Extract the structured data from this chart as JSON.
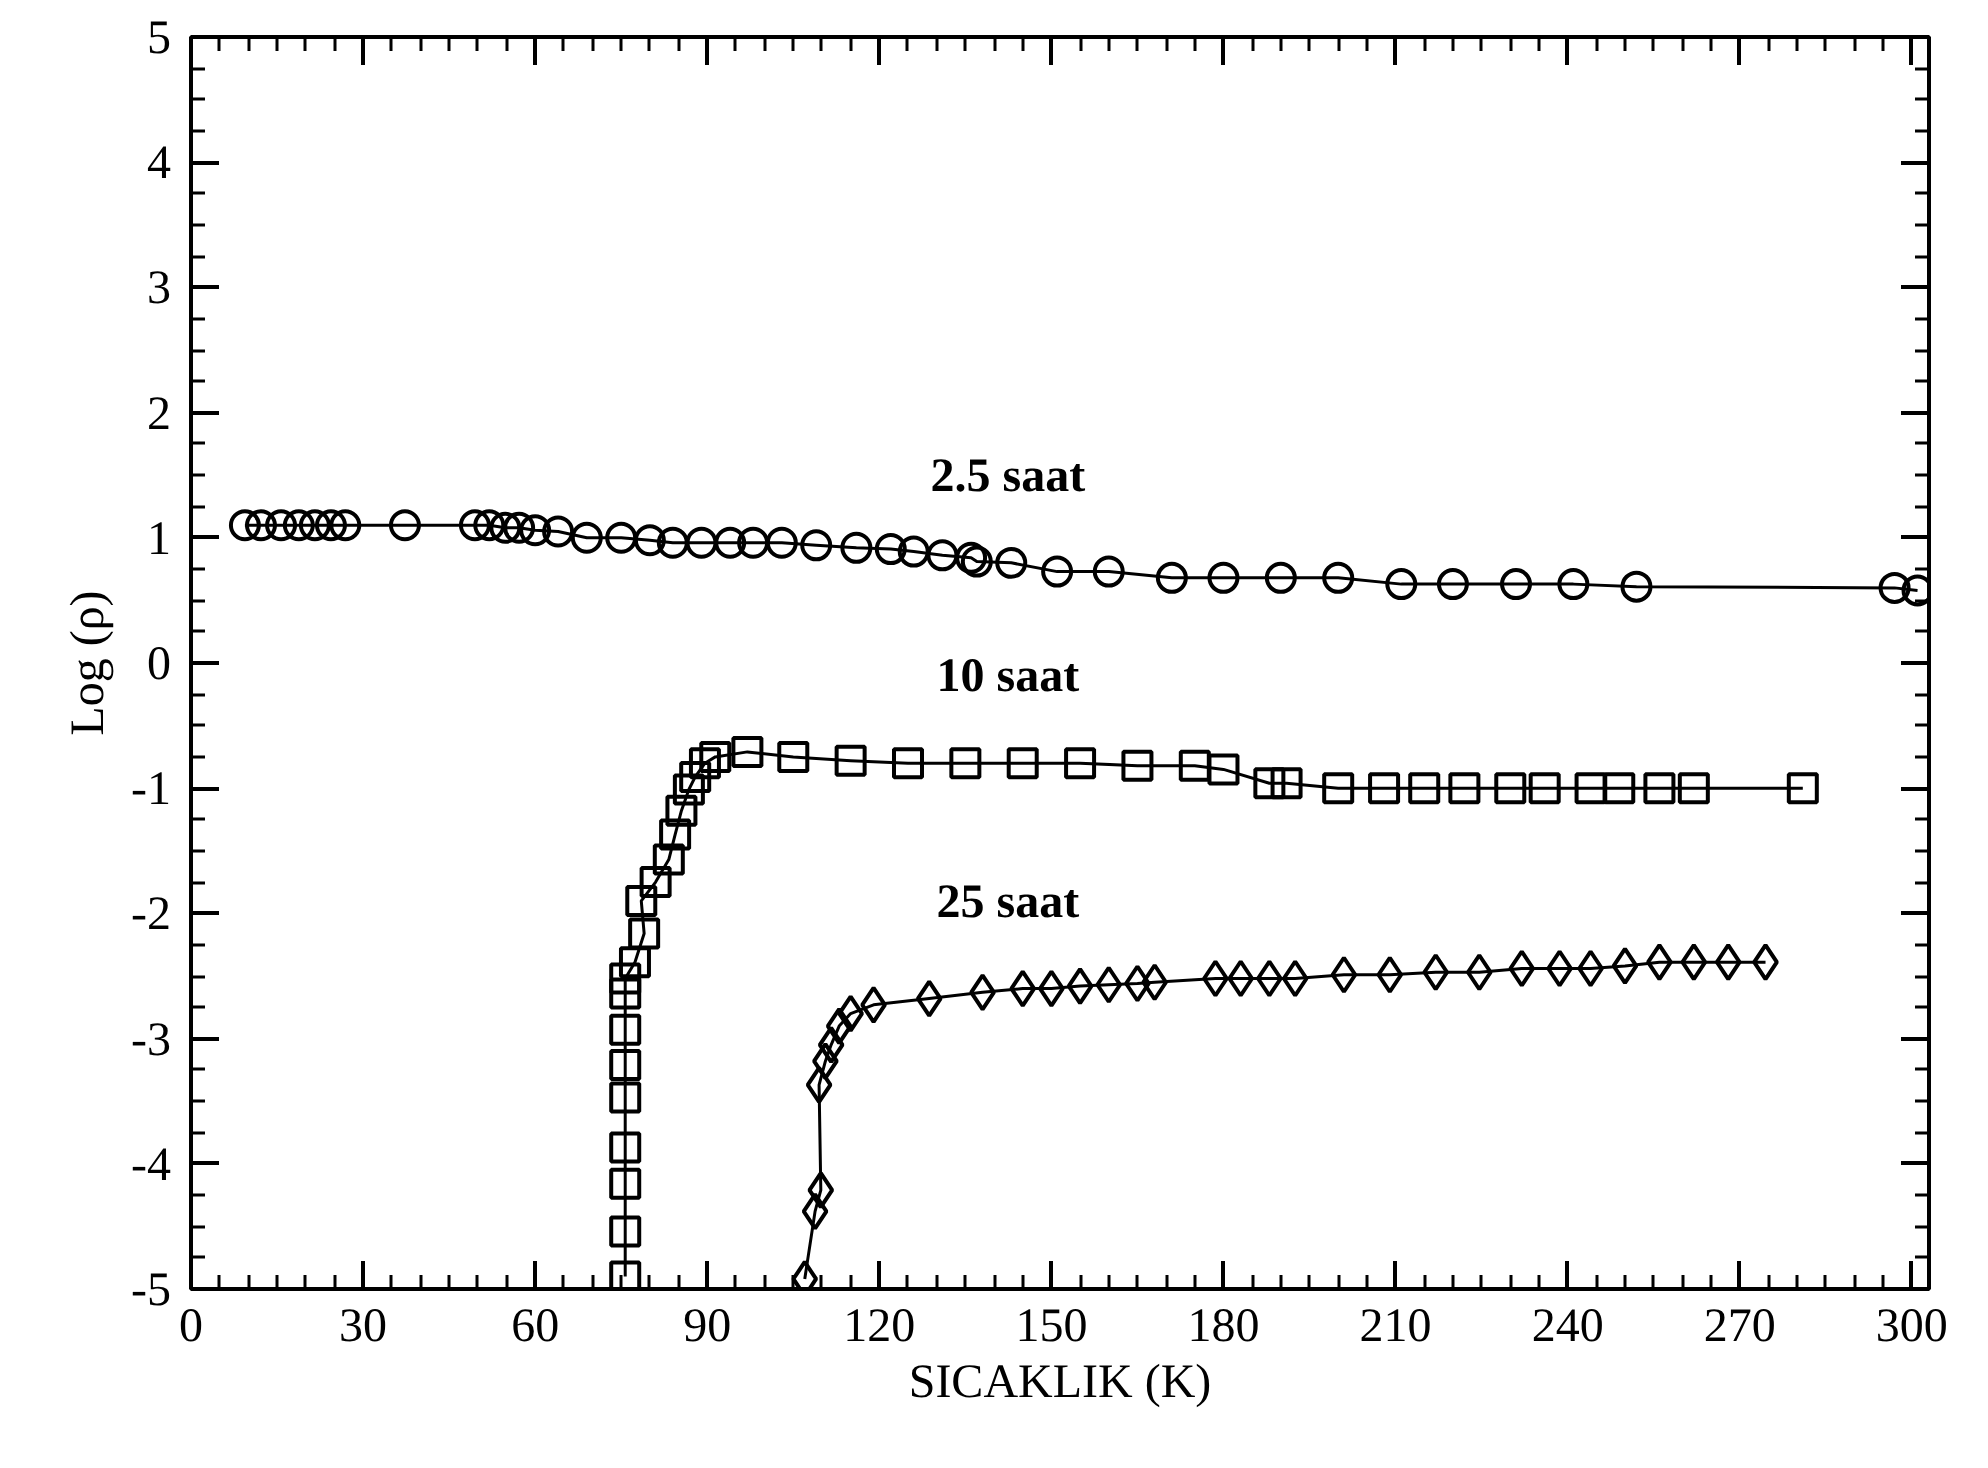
{
  "chart_data": {
    "type": "line",
    "xlabel": "SICAKLIK (K)",
    "ylabel": "Log (ρ)",
    "xlim": [
      0,
      303
    ],
    "ylim": [
      -5,
      5
    ],
    "xticks": [
      0,
      30,
      60,
      90,
      120,
      150,
      180,
      210,
      240,
      270,
      300
    ],
    "yticks": [
      -5,
      -4,
      -3,
      -2,
      -1,
      0,
      1,
      2,
      3,
      4,
      5
    ],
    "grid": false,
    "line_style": "solid",
    "series": [
      {
        "name": "2.5 saat",
        "color": "#000000",
        "marker": "circle",
        "x": [
          9.4,
          12.2,
          15.7,
          18.8,
          21.6,
          24.4,
          26.9,
          37.3,
          49.5,
          52,
          54.8,
          57.2,
          60,
          64,
          69,
          75,
          80,
          84,
          89,
          94,
          98,
          103,
          109,
          116,
          122,
          126,
          131,
          136,
          137,
          143,
          151,
          160,
          171,
          180,
          190,
          200,
          211,
          220,
          231,
          241,
          252,
          297,
          301
        ],
        "values": [
          1.1,
          1.1,
          1.1,
          1.1,
          1.1,
          1.1,
          1.1,
          1.1,
          1.1,
          1.1,
          1.08,
          1.08,
          1.06,
          1.05,
          1.0,
          1.0,
          0.98,
          0.96,
          0.96,
          0.96,
          0.96,
          0.96,
          0.94,
          0.92,
          0.91,
          0.89,
          0.86,
          0.84,
          0.81,
          0.8,
          0.73,
          0.73,
          0.68,
          0.68,
          0.68,
          0.68,
          0.63,
          0.63,
          0.63,
          0.63,
          0.61,
          0.6,
          0.58
        ]
      },
      {
        "name": "10 saat",
        "color": "#000000",
        "marker": "square",
        "x": [
          75.7,
          75.7,
          75.7,
          75.7,
          75.7,
          75.7,
          75.7,
          75.7,
          75.7,
          77.4,
          79,
          78.5,
          81,
          83.3,
          84.4,
          85.5,
          86.8,
          87.9,
          89.6,
          91.4,
          97,
          105,
          115,
          125,
          135,
          145,
          155,
          165,
          175,
          180,
          188,
          191,
          200,
          208,
          215,
          222,
          230,
          236,
          244,
          249,
          256,
          262,
          281
        ],
        "values": [
          -4.9,
          -4.54,
          -4.16,
          -3.87,
          -3.47,
          -3.21,
          -2.93,
          -2.64,
          -2.52,
          -2.39,
          -2.16,
          -1.9,
          -1.75,
          -1.57,
          -1.37,
          -1.18,
          -1.01,
          -0.91,
          -0.8,
          -0.75,
          -0.71,
          -0.75,
          -0.78,
          -0.8,
          -0.8,
          -0.8,
          -0.8,
          -0.82,
          -0.82,
          -0.85,
          -0.96,
          -0.96,
          -1.0,
          -1.0,
          -1.0,
          -1.0,
          -1.0,
          -1.0,
          -1.0,
          -1.0,
          -1.0,
          -1.0,
          -1.0
        ]
      },
      {
        "name": "25 saat",
        "color": "#000000",
        "marker": "diamond",
        "x": [
          107,
          108.8,
          109.8,
          109.5,
          110.6,
          111.6,
          113,
          115,
          119,
          128.7,
          138,
          145,
          150,
          155,
          160,
          165,
          168,
          178.6,
          183,
          188,
          192.5,
          201,
          209,
          217,
          224.6,
          232,
          238.6,
          244,
          250,
          256,
          262,
          268,
          274.5
        ],
        "values": [
          -4.92,
          -4.38,
          -4.21,
          -3.37,
          -3.18,
          -3.05,
          -2.9,
          -2.8,
          -2.73,
          -2.68,
          -2.63,
          -2.6,
          -2.6,
          -2.58,
          -2.57,
          -2.56,
          -2.55,
          -2.52,
          -2.52,
          -2.52,
          -2.52,
          -2.49,
          -2.49,
          -2.47,
          -2.47,
          -2.44,
          -2.44,
          -2.44,
          -2.42,
          -2.39,
          -2.39,
          -2.39,
          -2.39
        ]
      }
    ]
  }
}
